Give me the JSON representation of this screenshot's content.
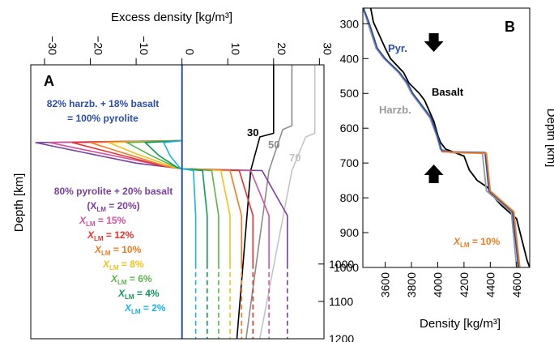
{
  "chart_data": [
    {
      "panel_letter": "A",
      "type": "line",
      "xlabel": "Excess density [kg/m³]",
      "ylabel": "Depth [km]",
      "x_ticks": [
        -30,
        -20,
        -10,
        0,
        10,
        20,
        30
      ],
      "y_ticks": [
        1000,
        1100,
        1200
      ],
      "xlim": [
        -33,
        31
      ],
      "ylim": [
        1200,
        250
      ],
      "annotations": {
        "top_line1": "82% harzb. + 18% basalt",
        "top_line2": "= 100% pyrolite",
        "mix_line1": "80% pyrolite + 20% basalt",
        "mix_line2": "(X",
        "mix_line2b": " = 20%)",
        "xlm_symbol": "X",
        "xlm_sub": "LM",
        "pct_15": " = 15%",
        "pct_12": " = 12%",
        "pct_10": " = 10%",
        "pct_8": " = 8%",
        "pct_6": " = 6%",
        "pct_4": " = 4%",
        "pct_2": " = 2%"
      },
      "series": [
        {
          "name": "30",
          "color": "#000000",
          "points": [
            [
              20,
              250
            ],
            [
              20,
              650
            ],
            [
              17,
              660
            ],
            [
              15,
              750
            ],
            [
              12,
              1200
            ]
          ]
        },
        {
          "name": "50",
          "color": "#8c8c8c",
          "points": [
            [
              24,
              250
            ],
            [
              24,
              630
            ],
            [
              22,
              640
            ],
            [
              19,
              750
            ],
            [
              14,
              1200
            ]
          ]
        },
        {
          "name": "70",
          "color": "#c4c4c4",
          "points": [
            [
              29,
              250
            ],
            [
              29,
              650
            ],
            [
              27,
              660
            ],
            [
              24,
              750
            ],
            [
              17,
              1200
            ]
          ]
        },
        {
          "name": "X_LM = 20%",
          "color": "#7a3fa0",
          "points": [
            [
              0,
              670
            ],
            [
              -32,
              675
            ],
            [
              -26,
              690
            ],
            [
              -10,
              730
            ],
            [
              0,
              745
            ],
            [
              17.5,
              750
            ],
            [
              23,
              870
            ],
            [
              23,
              1000
            ]
          ],
          "dashed_to": [
            [
              23,
              1000
            ],
            [
              23,
              1200
            ]
          ]
        },
        {
          "name": "X_LM = 15%",
          "color": "#d4509c",
          "points": [
            [
              0,
              670
            ],
            [
              -29,
              675
            ],
            [
              -21,
              695
            ],
            [
              -5,
              735
            ],
            [
              0,
              745
            ],
            [
              15,
              750
            ],
            [
              19,
              870
            ],
            [
              19,
              1000
            ]
          ],
          "dashed_to": [
            [
              19,
              1000
            ],
            [
              19,
              1200
            ]
          ]
        },
        {
          "name": "X_LM = 12%",
          "color": "#e8322e",
          "points": [
            [
              0,
              670
            ],
            [
              -24,
              675
            ],
            [
              -16,
              700
            ],
            [
              -4,
              738
            ],
            [
              0,
              745
            ],
            [
              12.5,
              750
            ],
            [
              15.5,
              870
            ],
            [
              15.5,
              1000
            ]
          ],
          "dashed_to": [
            [
              15.5,
              1000
            ],
            [
              15.5,
              1200
            ]
          ]
        },
        {
          "name": "X_LM = 10%",
          "color": "#f47b20",
          "points": [
            [
              0,
              670
            ],
            [
              -20,
              675
            ],
            [
              -13,
              702
            ],
            [
              -3,
              740
            ],
            [
              0,
              745
            ],
            [
              10.5,
              750
            ],
            [
              13,
              870
            ],
            [
              13,
              1000
            ]
          ],
          "dashed_to": [
            [
              13,
              1000
            ],
            [
              13,
              1200
            ]
          ]
        },
        {
          "name": "X_LM = 8%",
          "color": "#f2c21b",
          "points": [
            [
              0,
              670
            ],
            [
              -16,
              675
            ],
            [
              -10,
              705
            ],
            [
              -2,
              740
            ],
            [
              0,
              745
            ],
            [
              8.5,
              750
            ],
            [
              10.5,
              870
            ],
            [
              10.5,
              1000
            ]
          ],
          "dashed_to": [
            [
              10.5,
              1000
            ],
            [
              10.5,
              1200
            ]
          ]
        },
        {
          "name": "X_LM = 6%",
          "color": "#5ab54a",
          "points": [
            [
              0,
              670
            ],
            [
              -12,
              675
            ],
            [
              -7,
              708
            ],
            [
              -1.5,
              740
            ],
            [
              0,
              745
            ],
            [
              6.5,
              750
            ],
            [
              8,
              870
            ],
            [
              8,
              1000
            ]
          ],
          "dashed_to": [
            [
              8,
              1000
            ],
            [
              8,
              1200
            ]
          ]
        },
        {
          "name": "X_LM = 4%",
          "color": "#0f9a57",
          "points": [
            [
              0,
              670
            ],
            [
              -8,
              675
            ],
            [
              -5,
              710
            ],
            [
              -1,
              742
            ],
            [
              0,
              745
            ],
            [
              4.5,
              750
            ],
            [
              5.5,
              870
            ],
            [
              5.5,
              1000
            ]
          ],
          "dashed_to": [
            [
              5.5,
              1000
            ],
            [
              5.5,
              1200
            ]
          ]
        },
        {
          "name": "X_LM = 2%",
          "color": "#1ab3e6",
          "points": [
            [
              0,
              670
            ],
            [
              -4,
              675
            ],
            [
              -2.5,
              712
            ],
            [
              -0.5,
              742
            ],
            [
              0,
              745
            ],
            [
              2.5,
              750
            ],
            [
              3,
              870
            ],
            [
              3,
              1000
            ]
          ],
          "dashed_to": [
            [
              3,
              1000
            ],
            [
              3,
              1200
            ]
          ]
        },
        {
          "name": "100% pyrolite",
          "color": "#2b4fa8",
          "points": [
            [
              0,
              250
            ],
            [
              0,
              1200
            ]
          ]
        }
      ],
      "line_labels": [
        "30",
        "50",
        "70"
      ]
    },
    {
      "panel_letter": "B",
      "type": "line",
      "xlabel": "Density [kg/m³]",
      "ylabel": "Depth [km]",
      "x_ticks": [
        3600,
        3800,
        4000,
        4200,
        4400,
        4600
      ],
      "y_ticks": [
        300,
        400,
        500,
        600,
        700,
        800,
        900,
        1000
      ],
      "xlim": [
        3430,
        4700
      ],
      "ylim": [
        1000,
        255
      ],
      "annotations": {
        "pyr": "Pyr.",
        "basalt": "Basalt",
        "harzb": "Harzb.",
        "xlm": "X",
        "xlm_sub": "LM",
        "xlm_val": " = 10%"
      },
      "series": [
        {
          "name": "Basalt",
          "color": "#000000",
          "points": [
            [
              3490,
              255
            ],
            [
              3510,
              295
            ],
            [
              3600,
              370
            ],
            [
              3640,
              400
            ],
            [
              3740,
              440
            ],
            [
              3780,
              470
            ],
            [
              3860,
              500
            ],
            [
              3900,
              520
            ],
            [
              3970,
              580
            ],
            [
              4000,
              620
            ],
            [
              4020,
              640
            ],
            [
              4060,
              660
            ],
            [
              4200,
              680
            ],
            [
              4240,
              720
            ],
            [
              4300,
              750
            ],
            [
              4380,
              770
            ],
            [
              4410,
              790
            ],
            [
              4480,
              820
            ],
            [
              4600,
              860
            ],
            [
              4680,
              980
            ],
            [
              4700,
              1000
            ]
          ]
        },
        {
          "name": "Harzb.",
          "color": "#999999",
          "points": [
            [
              3430,
              255
            ],
            [
              3470,
              300
            ],
            [
              3530,
              370
            ],
            [
              3590,
              400
            ],
            [
              3700,
              440
            ],
            [
              3760,
              470
            ],
            [
              3800,
              500
            ],
            [
              3860,
              530
            ],
            [
              3940,
              570
            ],
            [
              3990,
              620
            ],
            [
              4020,
              660
            ],
            [
              4100,
              670
            ],
            [
              4340,
              672
            ],
            [
              4370,
              780
            ],
            [
              4560,
              840
            ],
            [
              4570,
              880
            ],
            [
              4600,
              1000
            ]
          ]
        },
        {
          "name": "Pyr.",
          "color": "#2b4fa8",
          "points": [
            [
              3435,
              255
            ],
            [
              3480,
              300
            ],
            [
              3540,
              370
            ],
            [
              3600,
              400
            ],
            [
              3710,
              440
            ],
            [
              3770,
              470
            ],
            [
              3810,
              500
            ],
            [
              3870,
              530
            ],
            [
              3950,
              570
            ],
            [
              4000,
              625
            ],
            [
              4030,
              665
            ],
            [
              4110,
              668
            ],
            [
              4360,
              670
            ],
            [
              4390,
              780
            ],
            [
              4570,
              840
            ],
            [
              4580,
              880
            ],
            [
              4615,
              1000
            ]
          ]
        },
        {
          "name": "X_LM = 10%",
          "color": "#f47b20",
          "points": [
            [
              4030,
              668
            ],
            [
              4370,
              672
            ],
            [
              4400,
              780
            ],
            [
              4580,
              840
            ],
            [
              4590,
              880
            ],
            [
              4625,
              1000
            ]
          ]
        }
      ],
      "arrows": [
        {
          "dir": "down",
          "depth": 355,
          "x": 3970
        },
        {
          "dir": "up",
          "depth": 730,
          "x": 3970
        }
      ]
    }
  ]
}
